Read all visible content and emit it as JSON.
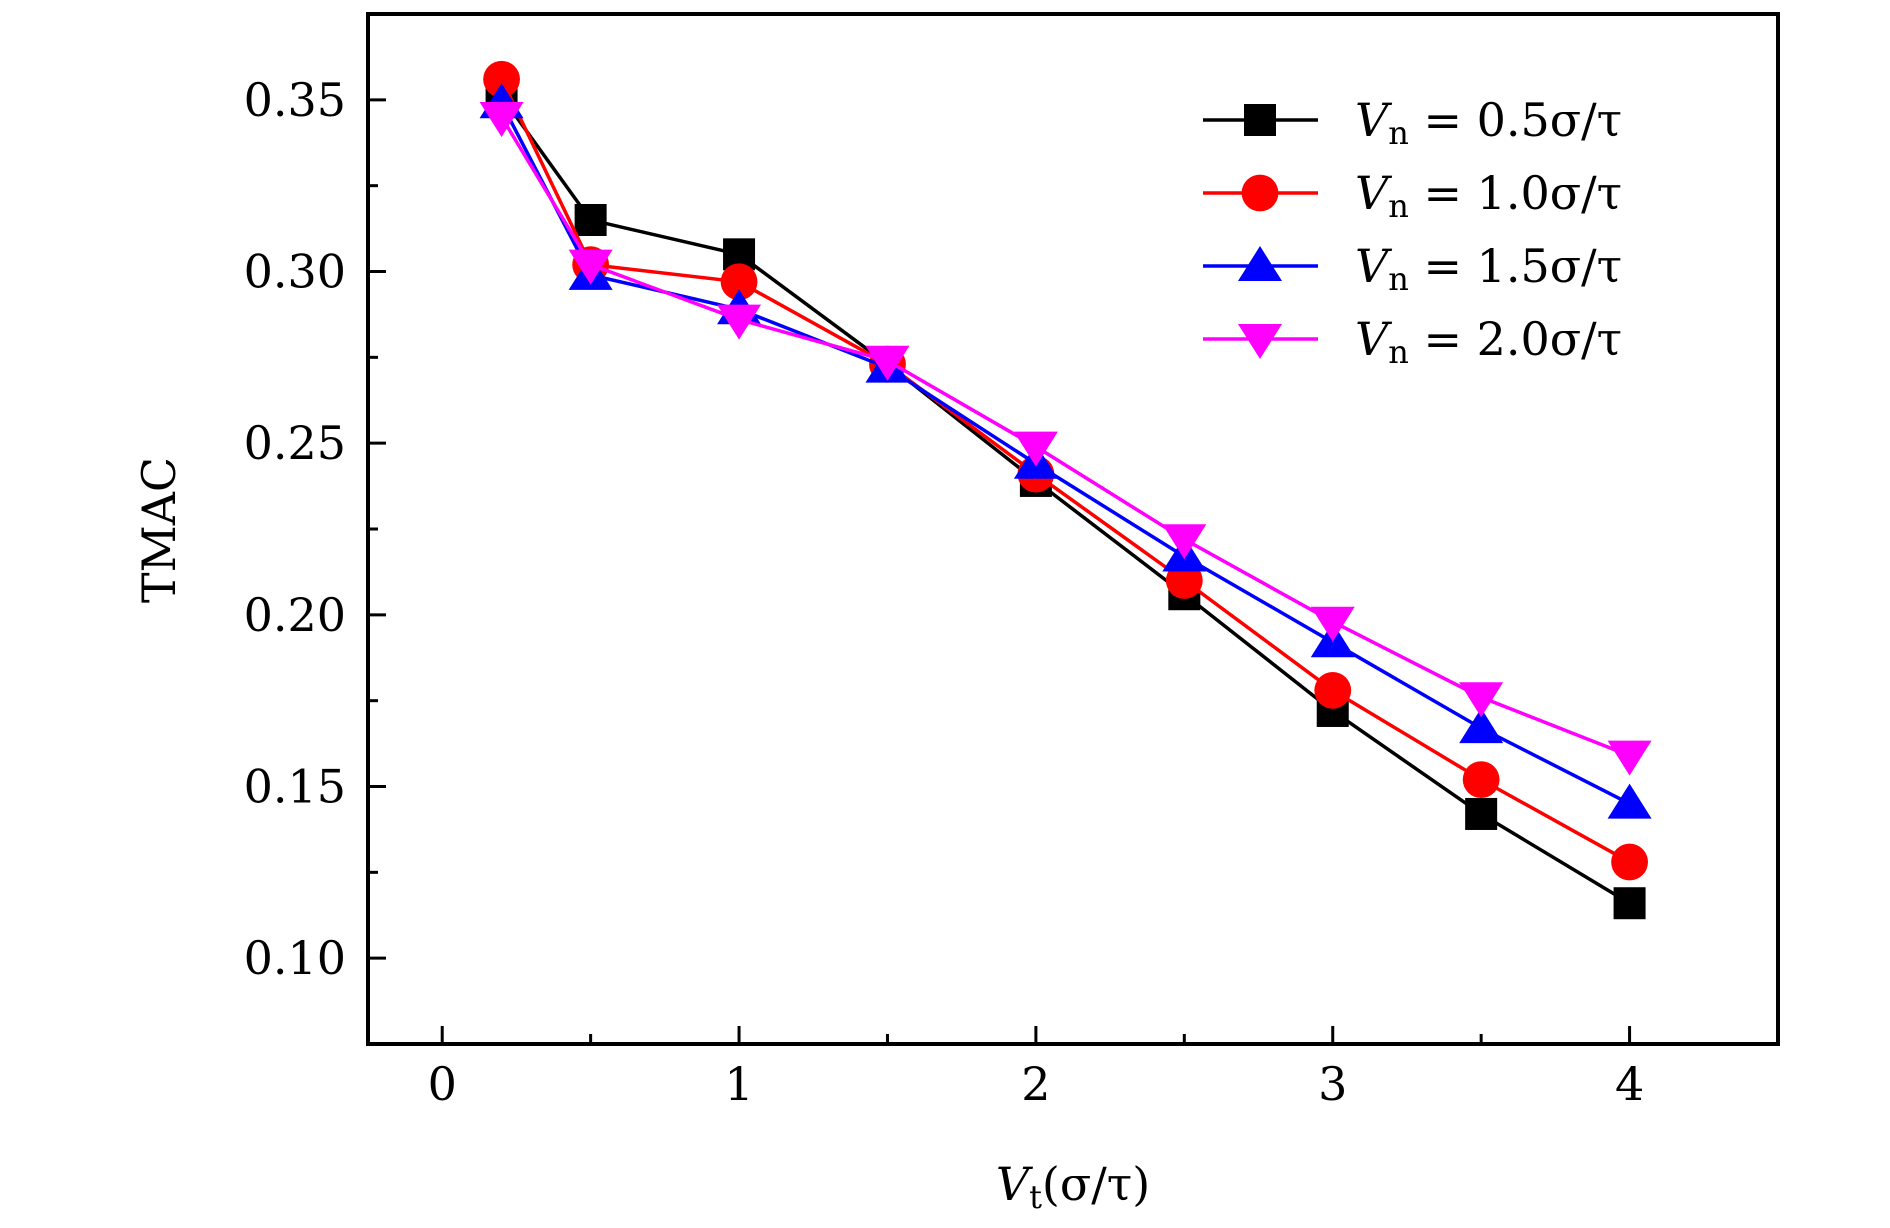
{
  "chart_data": {
    "type": "line",
    "title": "",
    "xlabel": {
      "var": "V",
      "sub": "t",
      "rest": "(σ/τ)"
    },
    "ylabel": "TMAC",
    "xlim": [
      -0.25,
      4.5
    ],
    "ylim": [
      0.075,
      0.375
    ],
    "xticks": [
      0,
      1,
      2,
      3,
      4
    ],
    "xticks_minor": [
      0.5,
      1.5,
      2.5,
      3.5
    ],
    "xtick_labels": [
      "0",
      "1",
      "2",
      "3",
      "4"
    ],
    "yticks": [
      0.1,
      0.15,
      0.2,
      0.25,
      0.3,
      0.35
    ],
    "yticks_minor": [
      0.125,
      0.175,
      0.225,
      0.275,
      0.325
    ],
    "ytick_labels": [
      "0.10",
      "0.15",
      "0.20",
      "0.25",
      "0.30",
      "0.35"
    ],
    "grid": false,
    "legend_position": "top-right",
    "x": [
      0.2,
      0.5,
      1.0,
      1.5,
      2.0,
      2.5,
      3.0,
      3.5,
      4.0
    ],
    "series": [
      {
        "name": "V_n = 0.5σ/τ",
        "legend": {
          "var": "V",
          "sub": "n",
          "rest": " = 0.5σ/τ"
        },
        "color": "#000000",
        "marker": "square",
        "values": [
          0.351,
          0.315,
          0.305,
          0.273,
          0.239,
          0.206,
          0.172,
          0.142,
          0.116
        ]
      },
      {
        "name": "V_n = 1.0σ/τ",
        "legend": {
          "var": "V",
          "sub": "n",
          "rest": " = 1.0σ/τ"
        },
        "color": "#ff0000",
        "marker": "circle",
        "values": [
          0.356,
          0.302,
          0.297,
          0.273,
          0.241,
          0.21,
          0.178,
          0.152,
          0.128
        ]
      },
      {
        "name": "V_n = 1.5σ/τ",
        "legend": {
          "var": "V",
          "sub": "n",
          "rest": " = 1.5σ/τ"
        },
        "color": "#0000ff",
        "marker": "triangle-up",
        "values": [
          0.349,
          0.299,
          0.289,
          0.272,
          0.244,
          0.217,
          0.192,
          0.167,
          0.145
        ]
      },
      {
        "name": "V_n = 2.0σ/τ",
        "legend": {
          "var": "V",
          "sub": "n",
          "rest": " = 2.0σ/τ"
        },
        "color": "#ff00ff",
        "marker": "triangle-down",
        "values": [
          0.345,
          0.302,
          0.286,
          0.274,
          0.249,
          0.222,
          0.198,
          0.176,
          0.159
        ]
      }
    ]
  }
}
